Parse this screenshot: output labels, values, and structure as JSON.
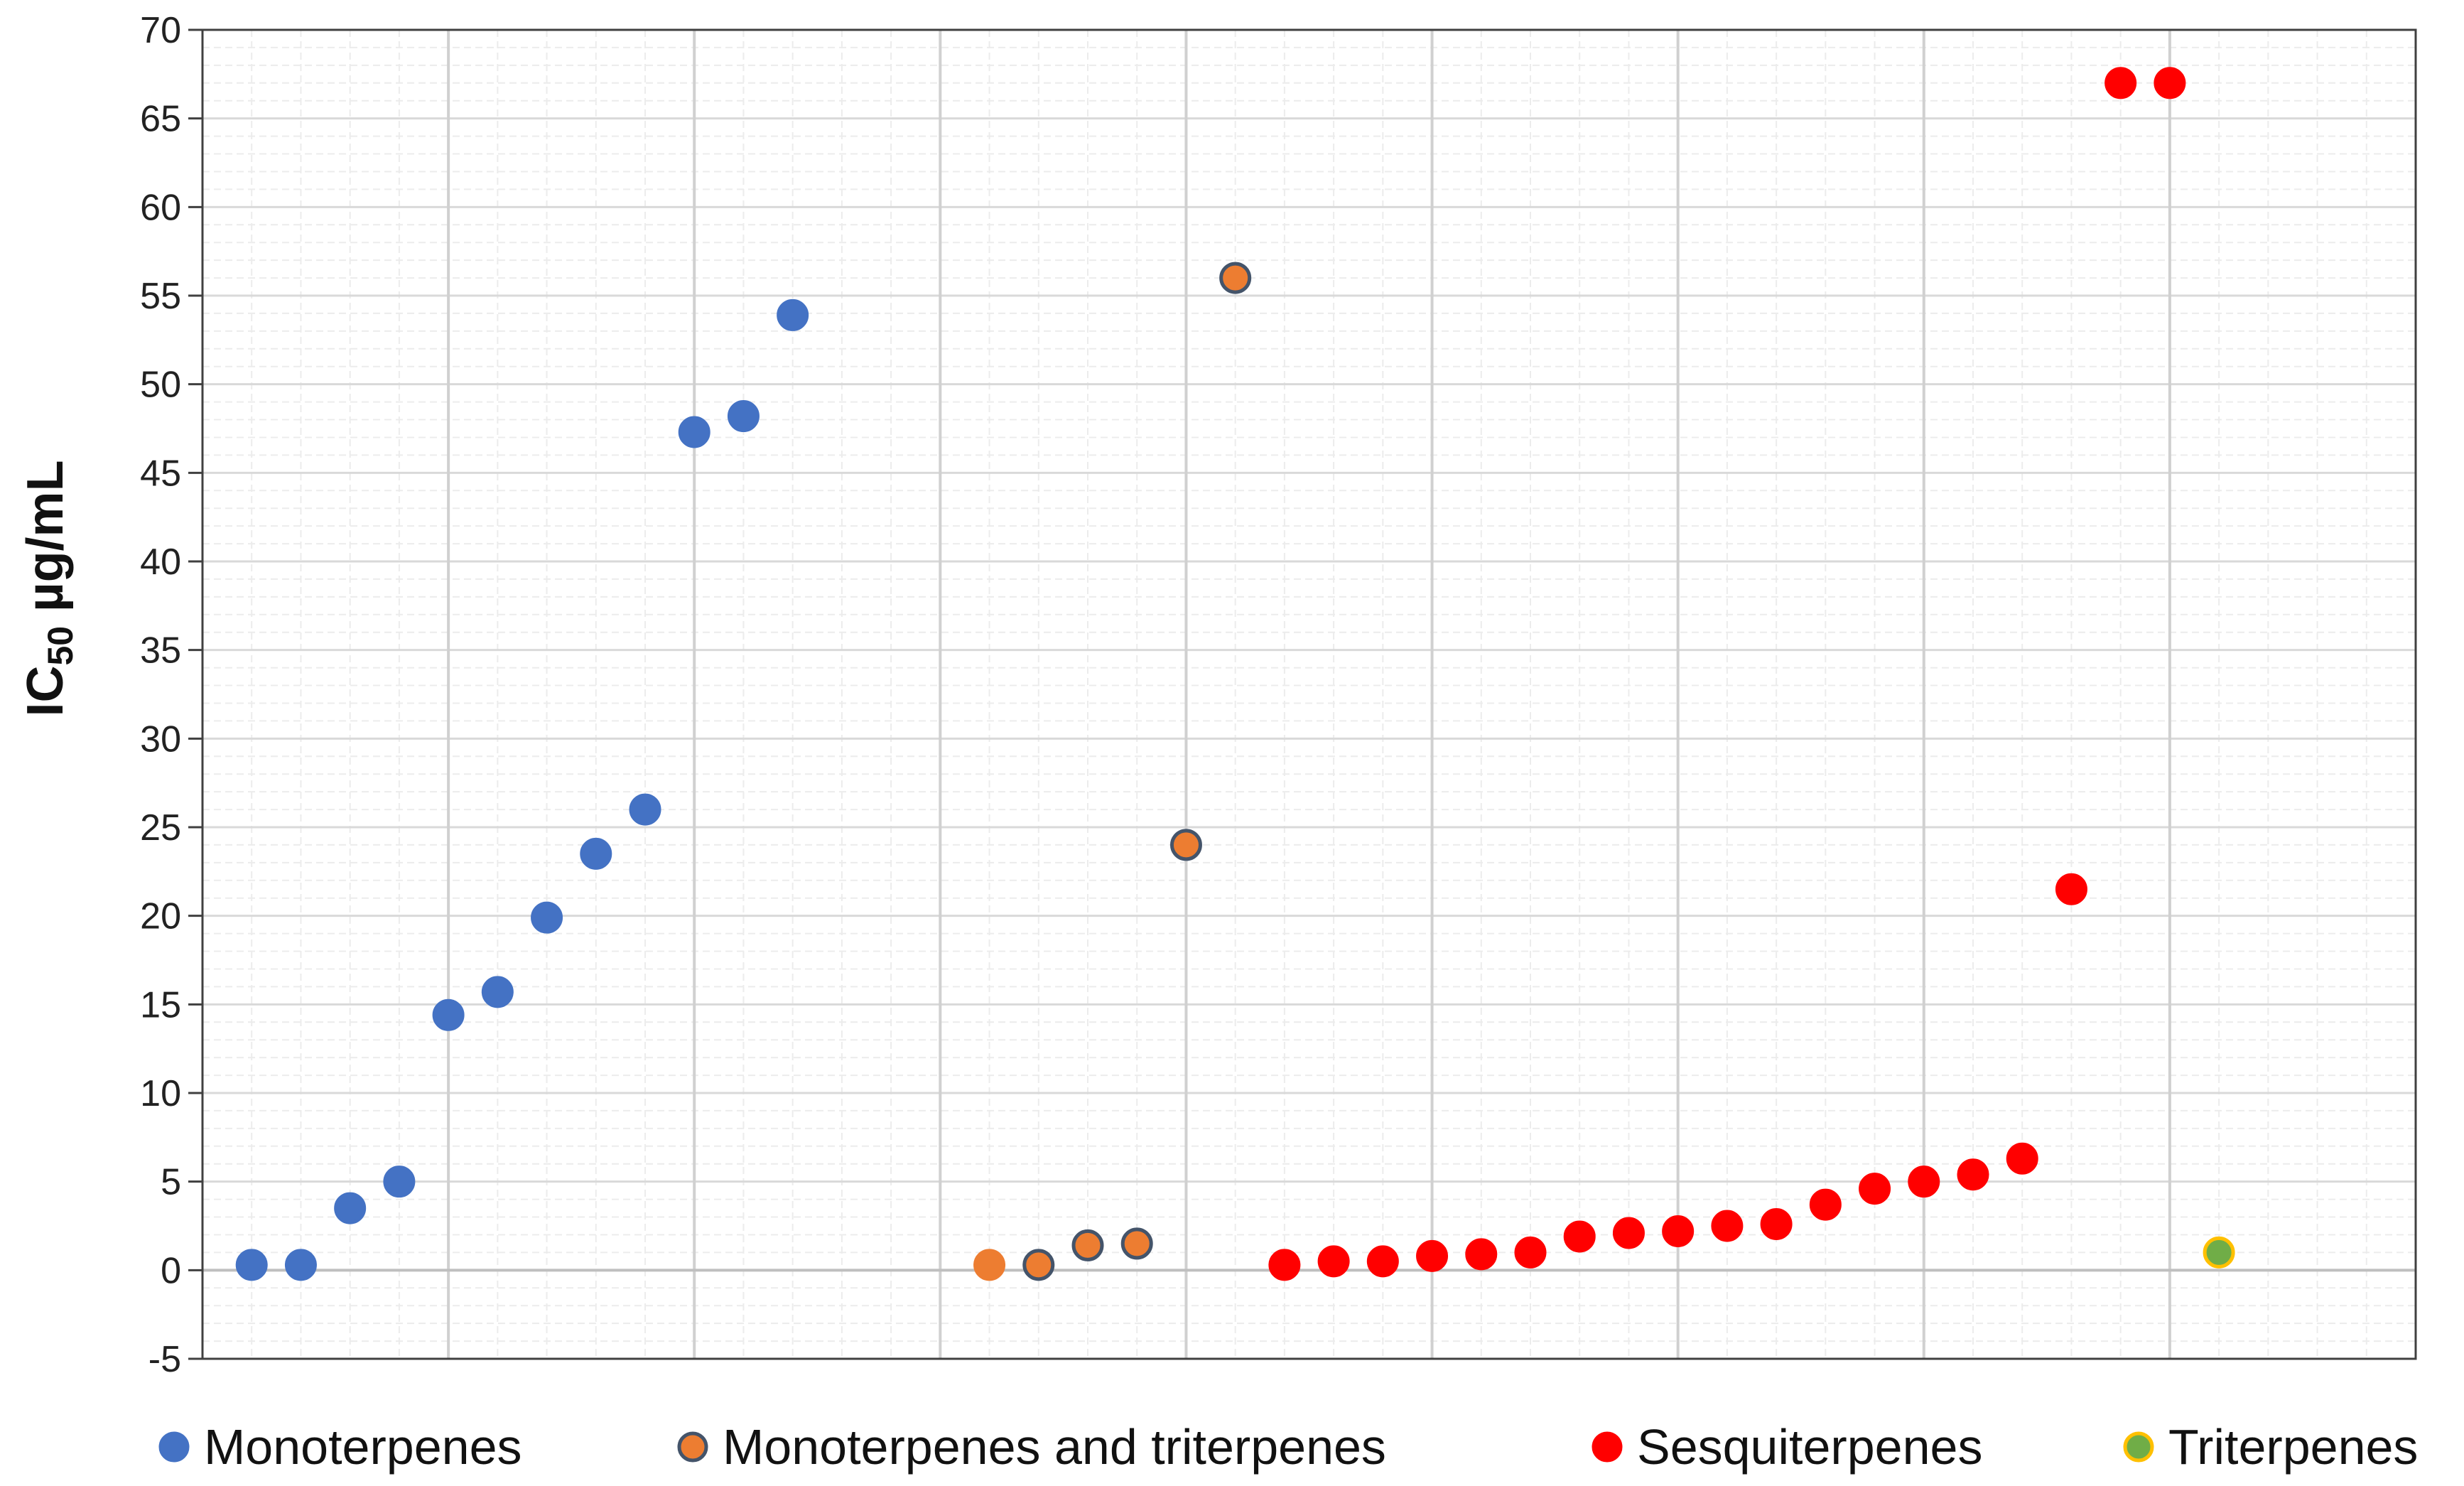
{
  "chart_data": {
    "type": "scatter",
    "title": "",
    "xlabel": "",
    "ylabel": {
      "main": "IC",
      "sub": "50",
      "unit": " µg/mL"
    },
    "ylim": [
      -5,
      70
    ],
    "ystep": 5,
    "xlim": [
      0,
      45
    ],
    "grid": true,
    "legend_position": "bottom",
    "series": [
      {
        "name": "Monoterpenes",
        "color": "#4472C4",
        "edge": "#4472C4",
        "points": [
          [
            1,
            0.3
          ],
          [
            2,
            0.3
          ],
          [
            3,
            3.5
          ],
          [
            4,
            5
          ],
          [
            5,
            14.4
          ],
          [
            6,
            15.7
          ],
          [
            7,
            19.9
          ],
          [
            8,
            23.5
          ],
          [
            9,
            26
          ],
          [
            10,
            47.3
          ],
          [
            11,
            48.2
          ],
          [
            12,
            53.9
          ]
        ]
      },
      {
        "name": "Monoterpenes and triterpenes",
        "color": "#ED7D31",
        "edge": "#44546A",
        "points": [
          [
            17,
            0.3
          ],
          [
            18,
            1.4
          ],
          [
            19,
            1.5
          ],
          [
            20,
            24
          ],
          [
            21,
            56
          ]
        ]
      },
      {
        "name": "Sesquiterpenes",
        "color": "#FF0000",
        "edge": "#FF0000",
        "points": [
          [
            22,
            0.3
          ],
          [
            23,
            0.5
          ],
          [
            24,
            0.5
          ],
          [
            25,
            0.8
          ],
          [
            26,
            0.9
          ],
          [
            27,
            1
          ],
          [
            28,
            1.9
          ],
          [
            29,
            2.1
          ],
          [
            30,
            2.2
          ],
          [
            31,
            2.5
          ],
          [
            32,
            2.6
          ],
          [
            33,
            3.7
          ],
          [
            34,
            4.6
          ],
          [
            35,
            5
          ],
          [
            36,
            5.4
          ],
          [
            37,
            6.3
          ],
          [
            38,
            21.5
          ],
          [
            39,
            67
          ],
          [
            40,
            67
          ]
        ]
      },
      {
        "name": "Triterpenes",
        "color": "#70AD47",
        "edge": "#FFC000",
        "points": [
          [
            41,
            1
          ]
        ]
      }
    ],
    "extra_points": [
      {
        "series": "Monoterpenes and triterpenes",
        "x": 16,
        "y": 0.3,
        "color": "#ED7D31",
        "edge": "#ED7D31"
      }
    ]
  }
}
